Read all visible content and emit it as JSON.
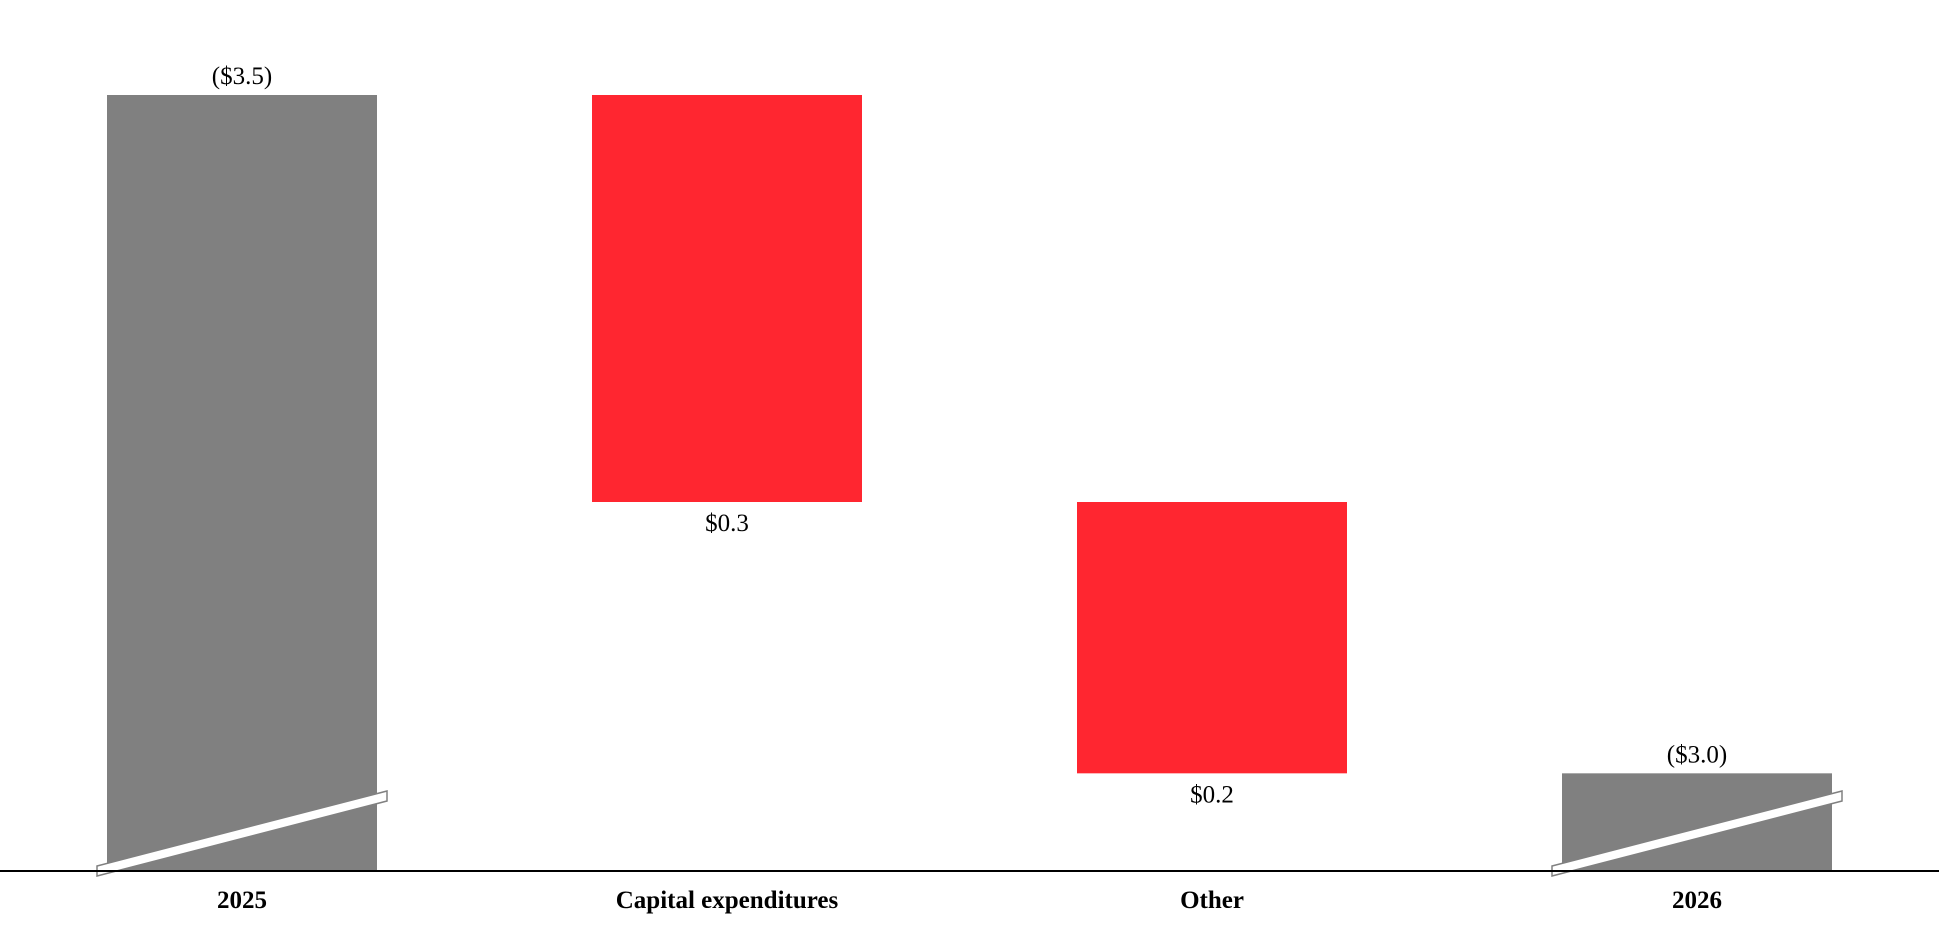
{
  "chart_data": {
    "type": "bar",
    "subtype": "waterfall",
    "categories": [
      "2025",
      "Capital expenditures",
      "Other",
      "2026"
    ],
    "values": [
      -3.5,
      0.3,
      0.2,
      -3.0
    ],
    "value_labels": [
      "($3.5)",
      "$0.3",
      "$0.2",
      "($3.0)"
    ],
    "bar_kinds": [
      "total",
      "change",
      "change",
      "total"
    ],
    "axis_break_on_totals": true,
    "grid": false,
    "legend": "none",
    "colors": {
      "total": "#808080",
      "change": "#ff2630",
      "axis": "#000000",
      "break": "#ffffff"
    }
  }
}
